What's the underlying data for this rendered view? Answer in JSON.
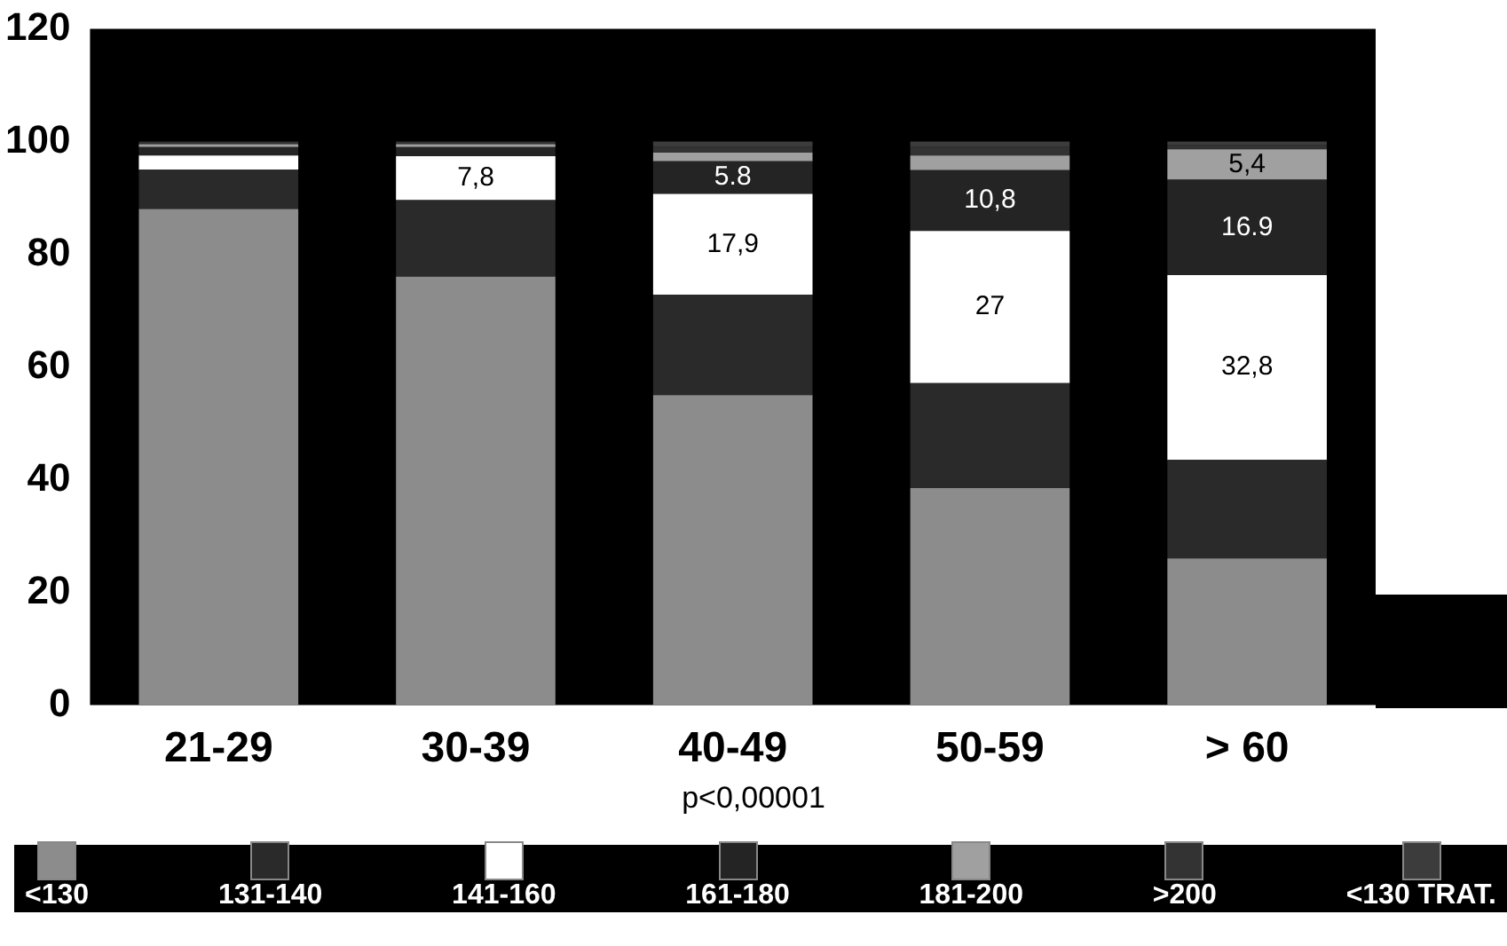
{
  "chart_data": {
    "type": "bar",
    "stacked": true,
    "categories": [
      "21-29",
      "30-39",
      "40-49",
      "50-59",
      "> 60"
    ],
    "series": [
      {
        "name": "<130",
        "color": "#8c8c8c",
        "values": [
          88,
          76,
          55,
          38.5,
          26
        ]
      },
      {
        "name": "131-140",
        "color": "#2a2a2a",
        "values": [
          7,
          13.6,
          17.8,
          18.6,
          17.5
        ]
      },
      {
        "name": "141-160",
        "color": "#ffffff",
        "values": [
          2.5,
          7.8,
          17.9,
          27,
          32.8
        ],
        "value_labels": [
          null,
          "7,8",
          "17,9",
          "27",
          "32,8"
        ]
      },
      {
        "name": "161-180",
        "color": "#242424",
        "values": [
          1.5,
          1.6,
          5.8,
          10.8,
          16.9
        ],
        "value_labels": [
          null,
          null,
          "5.8",
          "10,8",
          "16.9"
        ]
      },
      {
        "name": "181-200",
        "color": "#a0a0a0",
        "values": [
          0.5,
          0.5,
          1.5,
          2.6,
          5.4
        ],
        "value_labels": [
          null,
          null,
          null,
          null,
          "5,4"
        ]
      },
      {
        "name": ">200",
        "color": "#333333",
        "values": [
          0.5,
          0.5,
          1,
          1.5,
          0.7
        ]
      },
      {
        "name": "<130 TRAT.",
        "color": "#3c3c3c",
        "values": [
          0,
          0,
          1,
          1,
          0.7
        ]
      }
    ],
    "ylim": [
      0,
      120
    ],
    "yticks": [
      0,
      20,
      40,
      60,
      80,
      100,
      120
    ],
    "grid": false,
    "legend": "bottom",
    "annotations": [
      "p<0,00001"
    ]
  }
}
